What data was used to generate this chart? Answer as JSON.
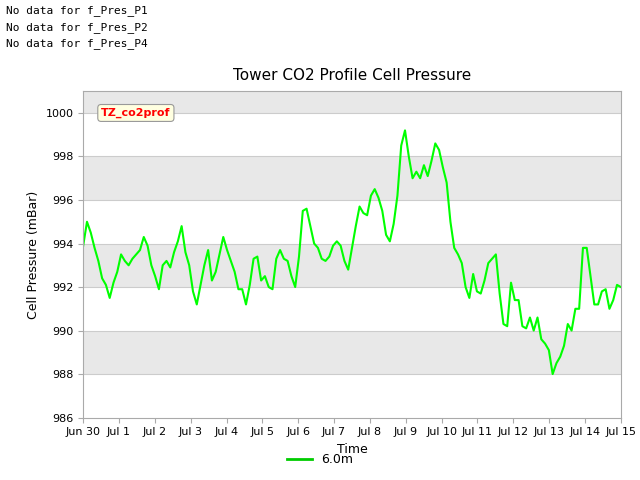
{
  "title": "Tower CO2 Profile Cell Pressure",
  "xlabel": "Time",
  "ylabel": "Cell Pressure (mBar)",
  "ylim": [
    986,
    1001
  ],
  "yticks": [
    986,
    988,
    990,
    992,
    994,
    996,
    998,
    1000
  ],
  "line_color": "#00FF00",
  "line_width": 1.5,
  "bg_color": "#FFFFFF",
  "plot_bg_color": "#FFFFFF",
  "legend_label": "6.0m",
  "legend_line_color": "#00CC00",
  "no_data_labels": [
    "No data for f_Pres_P1",
    "No data for f_Pres_P2",
    "No data for f_Pres_P4"
  ],
  "TZ_label": "TZ_co2prof",
  "x_tick_labels": [
    "Jun 30",
    "Jul 1",
    "Jul 2",
    "Jul 3",
    "Jul 4",
    "Jul 5",
    "Jul 6",
    "Jul 7",
    "Jul 8",
    "Jul 9",
    "Jul 10",
    "Jul 11",
    "Jul 12",
    "Jul 13",
    "Jul 14",
    "Jul 15"
  ],
  "band_colors": [
    "#FFFFFF",
    "#E8E8E8"
  ],
  "band_edges": [
    986,
    988,
    990,
    992,
    994,
    996,
    998,
    1000,
    1001
  ],
  "y_data": [
    993.9,
    995.0,
    994.5,
    993.8,
    993.2,
    992.4,
    992.1,
    991.5,
    992.2,
    992.7,
    993.5,
    993.2,
    993.0,
    993.3,
    993.5,
    993.7,
    994.3,
    993.9,
    993.0,
    992.5,
    991.9,
    993.0,
    993.2,
    992.9,
    993.6,
    994.1,
    994.8,
    993.6,
    993.0,
    991.8,
    991.2,
    992.1,
    993.0,
    993.7,
    992.3,
    992.7,
    993.5,
    994.3,
    993.7,
    993.2,
    992.7,
    991.9,
    991.9,
    991.2,
    992.1,
    993.3,
    993.4,
    992.3,
    992.5,
    992.0,
    991.9,
    993.3,
    993.7,
    993.3,
    993.2,
    992.5,
    992.0,
    993.4,
    995.5,
    995.6,
    994.8,
    994.0,
    993.8,
    993.3,
    993.2,
    993.4,
    993.9,
    994.1,
    993.9,
    993.2,
    992.8,
    993.8,
    994.8,
    995.7,
    995.4,
    995.3,
    996.2,
    996.5,
    996.1,
    995.5,
    994.4,
    994.1,
    994.9,
    996.2,
    998.5,
    999.2,
    998.0,
    997.0,
    997.3,
    997.0,
    997.6,
    997.1,
    997.8,
    998.6,
    998.3,
    997.5,
    996.8,
    995.0,
    993.8,
    993.5,
    993.1,
    992.0,
    991.5,
    992.6,
    991.8,
    991.7,
    992.3,
    993.1,
    993.3,
    993.5,
    991.7,
    990.3,
    990.2,
    992.2,
    991.4,
    991.4,
    990.2,
    990.1,
    990.6,
    990.0,
    990.6,
    989.6,
    989.4,
    989.1,
    988.0,
    988.5,
    988.8,
    989.3,
    990.3,
    990.0,
    991.0,
    991.0,
    993.8,
    993.8,
    992.5,
    991.2,
    991.2,
    991.8,
    991.9,
    991.0,
    991.4,
    992.1,
    992.0
  ]
}
